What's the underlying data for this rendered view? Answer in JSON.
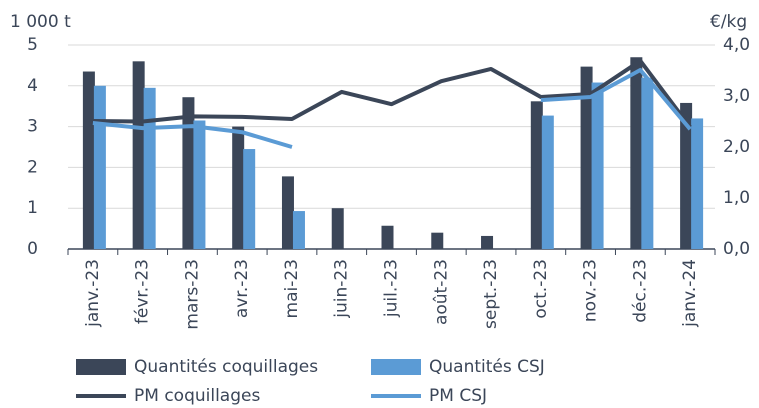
{
  "chart_data": {
    "type": "bar",
    "y_label": "1 000 t",
    "y2_label": "€/kg",
    "categories": [
      "janv.-23",
      "févr.-23",
      "mars-23",
      "avr.-23",
      "mai-23",
      "juin-23",
      "juil.-23",
      "août-23",
      "sept.-23",
      "oct.-23",
      "nov.-23",
      "déc.-23",
      "janv.-24"
    ],
    "series": [
      {
        "name": "Quantités coquillages",
        "type": "bar",
        "color": "#3b4658",
        "values": [
          4.35,
          4.6,
          3.72,
          3.0,
          1.78,
          1.0,
          0.57,
          0.4,
          0.32,
          3.62,
          4.47,
          4.7,
          3.58
        ]
      },
      {
        "name": "Quantités CSJ",
        "type": "bar",
        "color": "#5b9bd5",
        "values": [
          4.0,
          3.95,
          3.15,
          2.45,
          0.93,
          null,
          null,
          null,
          null,
          3.27,
          4.08,
          4.2,
          3.2
        ]
      },
      {
        "name": "PM coquillages",
        "type": "line",
        "axis": "y2",
        "color": "#3b4658",
        "values": [
          2.51,
          2.5,
          2.6,
          2.59,
          2.55,
          3.08,
          2.84,
          3.29,
          3.53,
          2.98,
          3.04,
          3.69,
          2.39
        ]
      },
      {
        "name": "PM CSJ",
        "type": "line",
        "axis": "y2",
        "color": "#5b9bd5",
        "values": [
          2.47,
          2.37,
          2.41,
          2.29,
          2.0,
          null,
          null,
          null,
          null,
          2.92,
          2.98,
          3.51,
          2.35
        ]
      }
    ],
    "ylim": [
      0,
      5
    ],
    "yticks": [
      0,
      1,
      2,
      3,
      4,
      5
    ],
    "y2lim": [
      0,
      4
    ],
    "y2ticks": [
      {
        "value": 0,
        "label": "0,0"
      },
      {
        "value": 1,
        "label": "1,0"
      },
      {
        "value": 2,
        "label": "2,0"
      },
      {
        "value": 3,
        "label": "3,0"
      },
      {
        "value": 4,
        "label": "4,0"
      }
    ],
    "grid": true,
    "legend": "bottom"
  }
}
